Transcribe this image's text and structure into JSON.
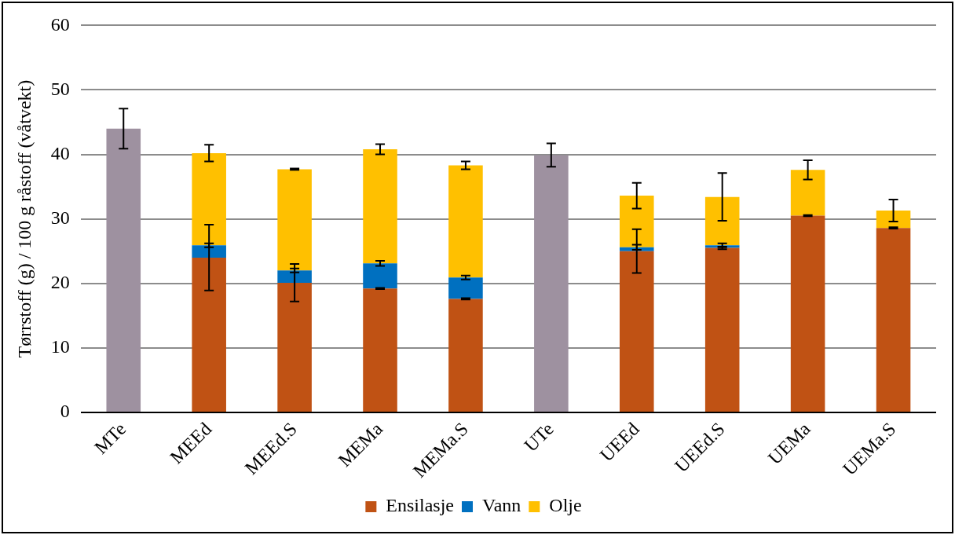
{
  "chart_data": {
    "type": "bar",
    "stacked": true,
    "ylabel": "Tørrstoff (g) / 100 g råstoff (våtvekt)",
    "categories": [
      "MTe",
      "MEEd",
      "MEEd.S",
      "MEMa",
      "MEMa.S",
      "UTe",
      "UEEd",
      "UEEd.S",
      "UEMa",
      "UEMa.S"
    ],
    "series": [
      {
        "name": "Ensilasje",
        "color": "#c05214",
        "values": [
          null,
          24.0,
          20.1,
          19.2,
          17.6,
          null,
          25.0,
          25.5,
          30.5,
          28.6
        ],
        "errors": [
          null,
          5.1,
          2.9,
          0.1,
          0.1,
          null,
          3.4,
          0.2,
          0.1,
          0.1
        ]
      },
      {
        "name": "Vann",
        "color": "#0070c0",
        "values": [
          null,
          1.9,
          1.9,
          3.9,
          3.3,
          null,
          0.6,
          0.4,
          0,
          0
        ],
        "errors": [
          null,
          0.3,
          0.3,
          0.4,
          0.3,
          null,
          0.4,
          0.3,
          null,
          null
        ]
      },
      {
        "name": "Olje",
        "color": "#ffc000",
        "values": [
          null,
          14.3,
          15.7,
          17.7,
          17.4,
          null,
          8.0,
          7.5,
          7.1,
          2.7
        ],
        "errors": [
          null,
          1.3,
          0.1,
          0.8,
          0.6,
          null,
          2.0,
          3.7,
          1.5,
          1.7
        ]
      },
      {
        "color": "#9e91a0",
        "values": [
          44.0,
          null,
          null,
          null,
          null,
          39.9,
          null,
          null,
          null,
          null
        ],
        "errors": [
          3.1,
          null,
          null,
          null,
          null,
          1.8,
          null,
          null,
          null,
          null
        ]
      }
    ],
    "ylim": [
      0,
      60
    ],
    "yticks": [
      0,
      10,
      20,
      30,
      40,
      50,
      60
    ],
    "grid": "y",
    "legend": "bottom"
  }
}
